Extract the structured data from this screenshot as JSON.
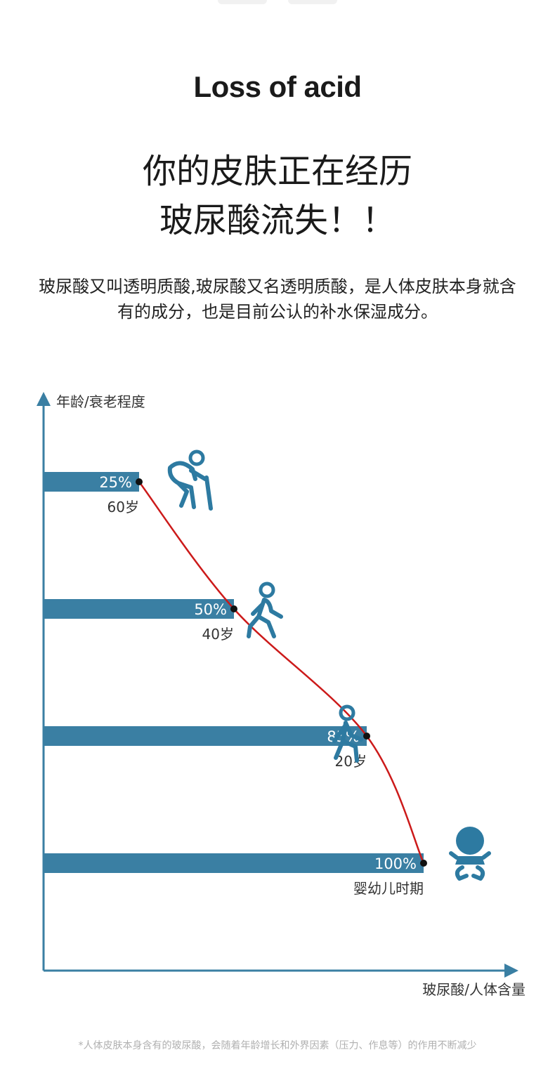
{
  "page": {
    "title": "Loss of acid",
    "headline_line1": "你的皮肤正在经历",
    "headline_line2": "玻尿酸流失！！",
    "intro_text": "玻尿酸又叫透明质酸,玻尿酸又名透明质酸，是人体皮肤本身就含有的成分，也是目前公认的补水保湿成分。",
    "footnote": "*人体皮肤本身含有的玻尿酸，会随着年龄增长和外界因素（压力、作息等）的作用不断减少"
  },
  "colors": {
    "bar": "#3a7fa3",
    "axis": "#3a7fa3",
    "curve": "#cc1a1a",
    "dot": "#111111",
    "icon": "#2d7aa1"
  },
  "chart_data": {
    "type": "bar",
    "orientation": "horizontal",
    "ylabel": "年龄/衰老程度",
    "xlabel": "玻尿酸/人体含量",
    "categories": [
      "60岁",
      "40岁",
      "20岁",
      "婴幼儿时期"
    ],
    "values": [
      25,
      50,
      85,
      100
    ],
    "value_labels": [
      "25%",
      "50%",
      "85%",
      "100%"
    ],
    "icons": [
      "elderly-with-cane-icon",
      "walking-adult-icon",
      "walking-youth-icon",
      "baby-icon"
    ],
    "xlim": [
      0,
      100
    ],
    "trend_curve": true,
    "grid": false
  }
}
